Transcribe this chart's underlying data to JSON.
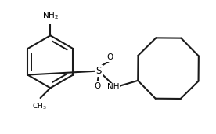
{
  "bg_color": "#ffffff",
  "bond_color": "#1a1a1a",
  "text_color": "#000000",
  "lw": 1.5,
  "bx": 2.2,
  "by": 3.1,
  "br": 1.0,
  "sx": 4.05,
  "sy": 2.75,
  "cox": 6.7,
  "coy": 2.85,
  "cor": 1.25,
  "xlim": [
    0.3,
    8.5
  ],
  "ylim": [
    0.8,
    5.0
  ]
}
